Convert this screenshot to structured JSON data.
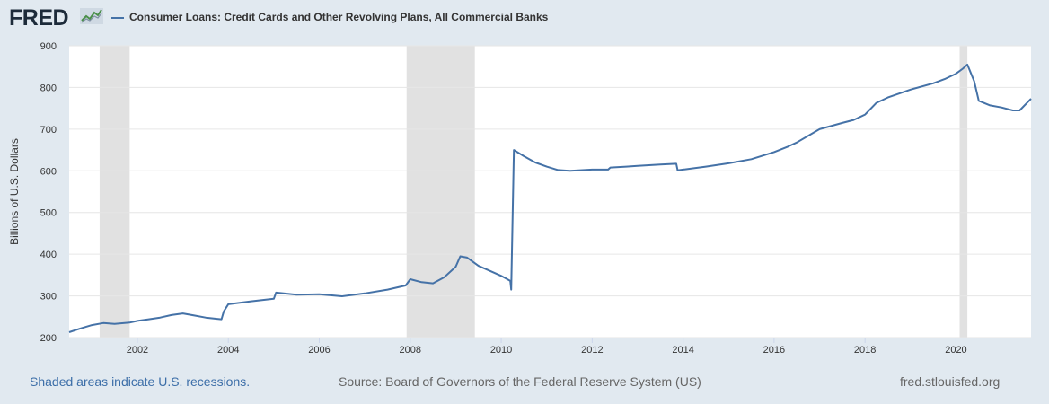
{
  "brand": {
    "logo_text": "FRED",
    "logo_icon": "line-chart-icon"
  },
  "colors": {
    "background": "#e1e9f0",
    "plot_background": "#ffffff",
    "series": "#4572a7",
    "recession": "#e1e1e1",
    "gridline": "#e6e6e6",
    "footer_link": "#3c6ea8"
  },
  "footer": {
    "recession_note": "Shaded areas indicate U.S. recessions.",
    "source": "Source: Board of Governors of the Federal Reserve System (US)",
    "site": "fred.stlouisfed.org"
  },
  "chart_data": {
    "type": "line",
    "title": "",
    "legend": [
      "Consumer Loans: Credit Cards and Other Revolving Plans, All Commercial Banks"
    ],
    "legend_position": "top-left",
    "xlabel": "",
    "ylabel": "Billions of U.S. Dollars",
    "xlim": [
      2000.5,
      2021.65
    ],
    "ylim": [
      200,
      900
    ],
    "x_ticks": [
      2002,
      2004,
      2006,
      2008,
      2010,
      2012,
      2014,
      2016,
      2018,
      2020
    ],
    "x_tick_labels": [
      "2002",
      "2004",
      "2006",
      "2008",
      "2010",
      "2012",
      "2014",
      "2016",
      "2018",
      "2020"
    ],
    "y_ticks": [
      200,
      300,
      400,
      500,
      600,
      700,
      800,
      900
    ],
    "y_tick_labels": [
      "200",
      "300",
      "400",
      "500",
      "600",
      "700",
      "800",
      "900"
    ],
    "grid": "horizontal",
    "recessions": [
      [
        2001.17,
        2001.83
      ],
      [
        2007.92,
        2009.42
      ],
      [
        2020.08,
        2020.25
      ]
    ],
    "series": [
      {
        "name": "Consumer Loans: Credit Cards and Other Revolving Plans, All Commercial Banks",
        "x": [
          2000.5,
          2000.75,
          2001.0,
          2001.25,
          2001.5,
          2001.83,
          2002.0,
          2002.25,
          2002.5,
          2002.75,
          2003.0,
          2003.25,
          2003.5,
          2003.75,
          2003.85,
          2003.9,
          2004.0,
          2004.5,
          2005.0,
          2005.05,
          2005.5,
          2006.0,
          2006.5,
          2007.0,
          2007.5,
          2007.9,
          2008.0,
          2008.25,
          2008.5,
          2008.75,
          2009.0,
          2009.1,
          2009.25,
          2009.5,
          2009.75,
          2010.0,
          2010.2,
          2010.22,
          2010.28,
          2010.5,
          2010.75,
          2011.0,
          2011.25,
          2011.5,
          2012.0,
          2012.35,
          2012.4,
          2012.75,
          2013.0,
          2013.5,
          2013.85,
          2013.88,
          2014.0,
          2014.5,
          2015.0,
          2015.5,
          2016.0,
          2016.3,
          2016.5,
          2017.0,
          2017.5,
          2017.75,
          2018.0,
          2018.25,
          2018.5,
          2019.0,
          2019.5,
          2019.75,
          2020.0,
          2020.15,
          2020.25,
          2020.4,
          2020.5,
          2020.75,
          2021.0,
          2021.25,
          2021.4,
          2021.65
        ],
        "values": [
          213,
          222,
          230,
          235,
          233,
          236,
          240,
          244,
          248,
          254,
          258,
          253,
          248,
          245,
          244,
          263,
          280,
          287,
          293,
          308,
          303,
          304,
          299,
          306,
          315,
          325,
          340,
          333,
          330,
          345,
          370,
          395,
          392,
          372,
          360,
          348,
          336,
          315,
          650,
          635,
          620,
          610,
          602,
          600,
          603,
          603,
          608,
          610,
          612,
          615,
          617,
          601,
          603,
          610,
          618,
          628,
          645,
          658,
          668,
          700,
          715,
          722,
          735,
          763,
          776,
          795,
          810,
          820,
          833,
          845,
          855,
          815,
          768,
          757,
          752,
          745,
          745,
          773
        ]
      }
    ]
  }
}
